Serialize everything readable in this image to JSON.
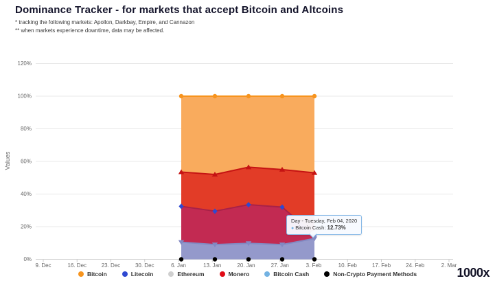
{
  "header": {
    "title": "Dominance Tracker - for markets that accept Bitcoin and Altcoins",
    "note1": "* tracking the following markets: Apollon, Darkbay, Empire, and Cannazon",
    "note2": "** when markets experience downtime, data may be affected."
  },
  "chart_data": {
    "type": "area",
    "title": "",
    "ylabel": "Values",
    "ylim": [
      0,
      120
    ],
    "ytick_labels": [
      "0%",
      "20%",
      "40%",
      "60%",
      "80%",
      "100%",
      "120%"
    ],
    "ytick_values": [
      0,
      20,
      40,
      60,
      80,
      100,
      120
    ],
    "xtick_labels": [
      "9. Dec",
      "16. Dec",
      "23. Dec",
      "30. Dec",
      "6. Jan",
      "13. Jan",
      "20. Jan",
      "27. Jan",
      "3. Feb",
      "10. Feb",
      "17. Feb",
      "24. Feb",
      "2. Mar"
    ],
    "point_dates": [
      "Jan 07, 2020",
      "Jan 14, 2020",
      "Jan 21, 2020",
      "Jan 28, 2020",
      "Feb 04, 2020"
    ],
    "grid": "horizontal-only",
    "legend_position": "bottom",
    "series": [
      {
        "name": "Bitcoin",
        "legend_color": "#f7941e",
        "band_fill": "#f9ab5d",
        "edge_color": "#f7941e",
        "marker": "circle",
        "values": [
          100,
          100,
          100,
          100,
          100
        ]
      },
      {
        "name": "Litecoin",
        "legend_color": "#2f49d1",
        "band_fill": "#c22a52",
        "edge_color": "#a82148",
        "marker": "diamond",
        "values": [
          32.5,
          29.5,
          33.5,
          32,
          15
        ]
      },
      {
        "name": "Ethereum",
        "legend_color": "#cfcfcf",
        "band_fill": null,
        "edge_color": "#cfcfcf",
        "marker": "circle",
        "values": [
          0,
          0,
          0,
          0,
          0
        ]
      },
      {
        "name": "Monero",
        "legend_color": "#e00b16",
        "band_fill": "#e23c27",
        "edge_color": "#c51313",
        "marker": "triangle-up",
        "values": [
          53.5,
          52,
          56.5,
          55,
          53
        ]
      },
      {
        "name": "Bitcoin Cash",
        "legend_color": "#73b2e2",
        "band_fill": "#9499cb",
        "edge_color": "#8289c2",
        "marker": "triangle-down",
        "values": [
          10.5,
          9,
          9.8,
          9,
          12.73
        ]
      },
      {
        "name": "Non-Crypto Payment Methods",
        "legend_color": "#000000",
        "band_fill": null,
        "edge_color": "#000000",
        "marker": "circle",
        "values": [
          0,
          0,
          0,
          0,
          0
        ]
      }
    ]
  },
  "tooltip": {
    "date_line": "Day - Tuesday, Feb 04, 2020",
    "series_label": "Bitcoin Cash:",
    "value": "12.73%",
    "bullet_color": "#73b2e2"
  },
  "logo": {
    "text": "1000x"
  }
}
